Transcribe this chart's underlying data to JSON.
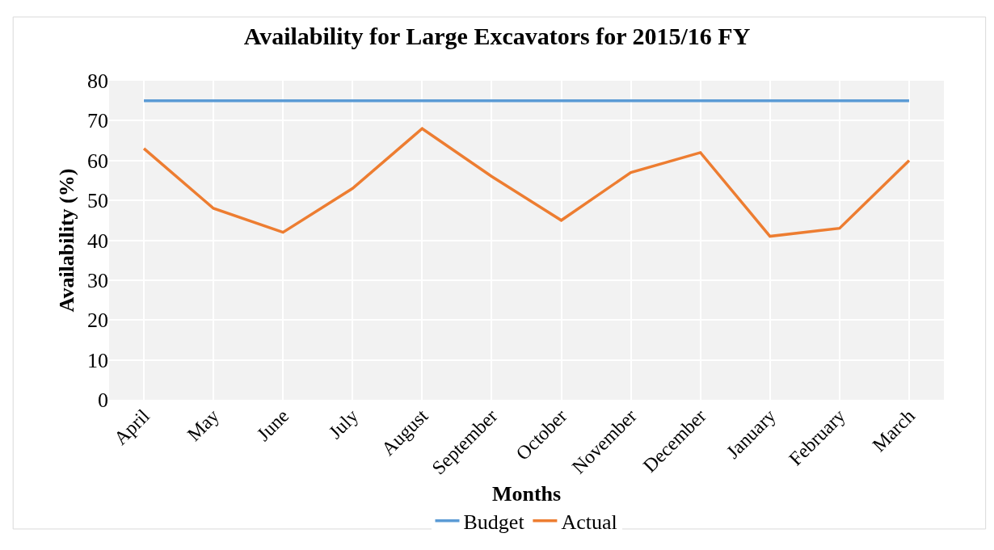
{
  "chart_data": {
    "type": "line",
    "title": "Availability for Large Excavators for 2015/16 FY",
    "xlabel": "Months",
    "ylabel": "Availability (%)",
    "categories": [
      "April",
      "May",
      "June",
      "July",
      "August",
      "September",
      "October",
      "November",
      "December",
      "January",
      "February",
      "March"
    ],
    "series": [
      {
        "name": "Budget",
        "color": "#5b9bd5",
        "values": [
          75,
          75,
          75,
          75,
          75,
          75,
          75,
          75,
          75,
          75,
          75,
          75
        ]
      },
      {
        "name": "Actual",
        "color": "#ed7d31",
        "values": [
          63,
          48,
          42,
          53,
          68,
          56,
          45,
          57,
          62,
          41,
          43,
          60
        ]
      }
    ],
    "ylim": [
      0,
      80
    ],
    "yticks": [
      0,
      10,
      20,
      30,
      40,
      50,
      60,
      70,
      80
    ],
    "grid": true,
    "legend": "bottom",
    "marker": "none",
    "line_style": "solid"
  }
}
